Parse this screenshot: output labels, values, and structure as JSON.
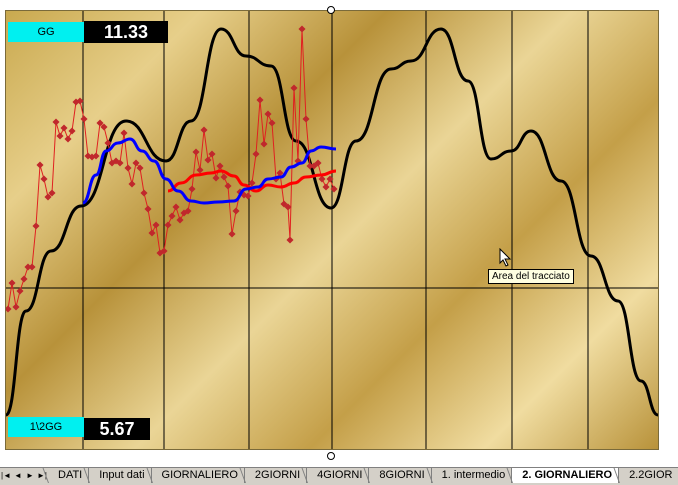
{
  "chart": {
    "top_label": "GG",
    "top_value": "11.33",
    "bottom_label": "1\\2GG",
    "bottom_value": "5.67",
    "tooltip": "Area del tracciato",
    "colors": {
      "background": "#d4b868",
      "primary_curve": "#000000",
      "raw_series": "#e02020",
      "red_average": "#ff0000",
      "blue_average": "#0000ff",
      "label_background": "#00f0f0"
    }
  },
  "tabs": {
    "nav": [
      "first-icon",
      "prev-icon",
      "next-icon",
      "last-icon"
    ],
    "items": [
      {
        "label": "DATI",
        "active": false
      },
      {
        "label": "Input dati",
        "active": false
      },
      {
        "label": "GIORNALIERO",
        "active": false
      },
      {
        "label": "2GIORNI",
        "active": false
      },
      {
        "label": "4GIORNI",
        "active": false
      },
      {
        "label": "8GIORNI",
        "active": false
      },
      {
        "label": "1. intermedio",
        "active": false
      },
      {
        "label": "2. GIORNALIERO",
        "active": true
      },
      {
        "label": "2.2GIOR",
        "active": false
      }
    ]
  }
}
